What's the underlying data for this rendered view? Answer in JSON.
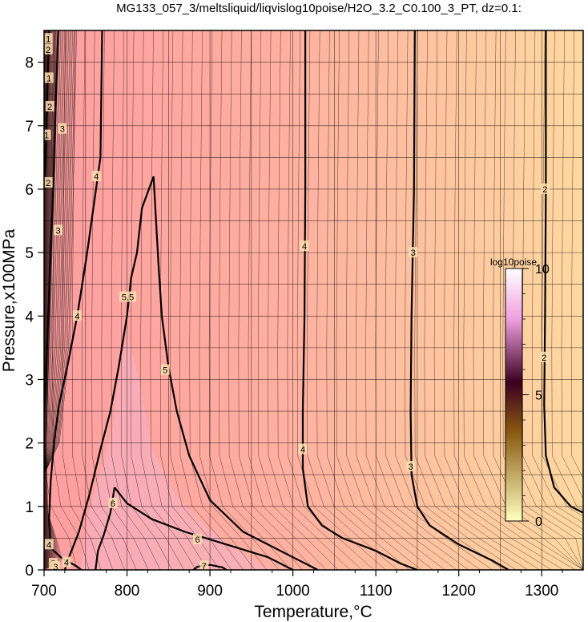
{
  "chart_data": {
    "type": "heatmap",
    "title": "MG133_057_3/meltsliquid/liqvislog10poise/H2O_3.2_C0.100_3_PT, dz=0.1:",
    "xlabel": "Temperature,°C",
    "ylabel": "Pressure,x100MPa",
    "xlim": [
      700,
      1350
    ],
    "ylim": [
      0,
      8.5
    ],
    "xticks": [
      700,
      800,
      900,
      1000,
      1100,
      1200,
      1300
    ],
    "yticks": [
      0,
      1,
      2,
      3,
      4,
      5,
      6,
      7,
      8
    ],
    "grid": true,
    "colorbar": {
      "label": "log10poise",
      "range": [
        0,
        10
      ],
      "ticks": [
        0,
        5,
        10
      ],
      "colors": [
        "#ffffc0",
        "#8a5a10",
        "#3a0020",
        "#f0a0e0",
        "#ffffff"
      ]
    },
    "background_colors": {
      "low_T": "#ff9ea0",
      "high_T": "#ffd8a0"
    },
    "contour_interval": 0.1,
    "bold_contours": [
      {
        "level": 4,
        "points": [
          [
            770,
            8.5
          ],
          [
            768,
            6.5
          ],
          [
            752,
            5
          ],
          [
            740,
            4
          ],
          [
            728,
            3.2
          ],
          [
            718,
            2.6
          ],
          [
            712,
            2.0
          ],
          [
            708,
            1.4
          ],
          [
            706,
            0.8
          ],
          [
            708,
            0.35
          ],
          [
            720,
            0.2
          ],
          [
            740,
            0.05
          ],
          [
            745,
            0
          ]
        ]
      },
      {
        "level": 3,
        "points": [
          [
            717,
            8.5
          ],
          [
            714,
            7.3
          ],
          [
            711,
            6.0
          ],
          [
            708,
            5.0
          ],
          [
            705,
            4.0
          ],
          [
            702,
            3.0
          ],
          [
            700,
            2.5
          ]
        ]
      },
      {
        "level": 2,
        "points": [
          [
            706,
            8.5
          ],
          [
            704,
            7.5
          ],
          [
            702,
            6.5
          ],
          [
            700,
            6.0
          ]
        ]
      },
      {
        "level": 5,
        "points": [
          [
            832,
            6.2
          ],
          [
            818,
            5.7
          ],
          [
            812,
            5.0
          ],
          [
            805,
            4.6
          ],
          [
            800,
            4.0
          ],
          [
            790,
            3.2
          ],
          [
            780,
            2.5
          ],
          [
            768,
            1.9
          ],
          [
            755,
            1.2
          ],
          [
            742,
            0.6
          ],
          [
            730,
            0.2
          ],
          [
            725,
            0
          ]
        ]
      },
      {
        "level": 5,
        "points": [
          [
            832,
            6.2
          ],
          [
            835,
            5.5
          ],
          [
            838,
            4.8
          ],
          [
            842,
            4.0
          ],
          [
            850,
            3.2
          ],
          [
            860,
            2.5
          ],
          [
            875,
            1.8
          ],
          [
            900,
            1.1
          ],
          [
            940,
            0.6
          ],
          [
            1000,
            0.2
          ],
          [
            1030,
            0
          ]
        ]
      },
      {
        "level": 6,
        "points": [
          [
            785,
            1.3
          ],
          [
            800,
            1.05
          ],
          [
            830,
            0.8
          ],
          [
            870,
            0.6
          ],
          [
            920,
            0.4
          ],
          [
            970,
            0.2
          ],
          [
            1000,
            0
          ]
        ]
      },
      {
        "level": 6,
        "points": [
          [
            785,
            1.3
          ],
          [
            780,
            0.9
          ],
          [
            772,
            0.55
          ],
          [
            765,
            0.3
          ],
          [
            762,
            0
          ]
        ]
      },
      {
        "level": 7,
        "points": [
          [
            880,
            0
          ],
          [
            885,
            0.05
          ],
          [
            900,
            0.08
          ],
          [
            915,
            0.04
          ],
          [
            920,
            0
          ]
        ]
      },
      {
        "level": 4,
        "points": [
          [
            1015,
            8.5
          ],
          [
            1015,
            6
          ],
          [
            1014,
            4
          ],
          [
            1012,
            2.5
          ],
          [
            1012,
            1.6
          ],
          [
            1018,
            1.0
          ],
          [
            1035,
            0.7
          ],
          [
            1060,
            0.5
          ],
          [
            1100,
            0.3
          ],
          [
            1130,
            0.1
          ],
          [
            1150,
            0
          ]
        ]
      },
      {
        "level": 3,
        "points": [
          [
            1147,
            8.5
          ],
          [
            1146,
            6
          ],
          [
            1143,
            4
          ],
          [
            1142,
            2.5
          ],
          [
            1143,
            1.5
          ],
          [
            1150,
            1.0
          ],
          [
            1165,
            0.7
          ],
          [
            1200,
            0.4
          ],
          [
            1240,
            0.15
          ],
          [
            1260,
            0
          ]
        ]
      },
      {
        "level": 2,
        "points": [
          [
            1305,
            8.5
          ],
          [
            1305,
            6
          ],
          [
            1304,
            4
          ],
          [
            1303,
            2.6
          ],
          [
            1305,
            1.8
          ],
          [
            1315,
            1.3
          ],
          [
            1335,
            1.0
          ],
          [
            1350,
            0.9
          ]
        ]
      }
    ],
    "contour_labels": [
      {
        "text": "1",
        "x": 705,
        "y": 8.37
      },
      {
        "text": "2",
        "x": 705,
        "y": 8.2
      },
      {
        "text": "1",
        "x": 706,
        "y": 7.75
      },
      {
        "text": "2",
        "x": 707,
        "y": 7.3
      },
      {
        "text": "3",
        "x": 722,
        "y": 6.95
      },
      {
        "text": "1",
        "x": 703,
        "y": 6.85
      },
      {
        "text": "2",
        "x": 705,
        "y": 6.1
      },
      {
        "text": "3",
        "x": 717,
        "y": 5.35
      },
      {
        "text": "4",
        "x": 763,
        "y": 6.2
      },
      {
        "text": "4",
        "x": 740,
        "y": 4.0
      },
      {
        "text": "5.5",
        "x": 801,
        "y": 4.3
      },
      {
        "text": "5",
        "x": 846,
        "y": 3.15
      },
      {
        "text": "4",
        "x": 1014,
        "y": 5.1
      },
      {
        "text": "3",
        "x": 1145,
        "y": 5.0
      },
      {
        "text": "2",
        "x": 1304,
        "y": 6.0
      },
      {
        "text": "2",
        "x": 1303,
        "y": 3.35
      },
      {
        "text": "4",
        "x": 1012,
        "y": 1.9
      },
      {
        "text": "3",
        "x": 1142,
        "y": 1.63
      },
      {
        "text": "6",
        "x": 783,
        "y": 1.05
      },
      {
        "text": "6",
        "x": 885,
        "y": 0.48
      },
      {
        "text": "7",
        "x": 893,
        "y": 0.06
      },
      {
        "text": "4",
        "x": 706,
        "y": 0.4
      },
      {
        "text": "5",
        "x": 711,
        "y": 0.1
      },
      {
        "text": "4",
        "x": 727,
        "y": 0.12
      },
      {
        "text": "3",
        "x": 714,
        "y": 0.05
      }
    ]
  }
}
